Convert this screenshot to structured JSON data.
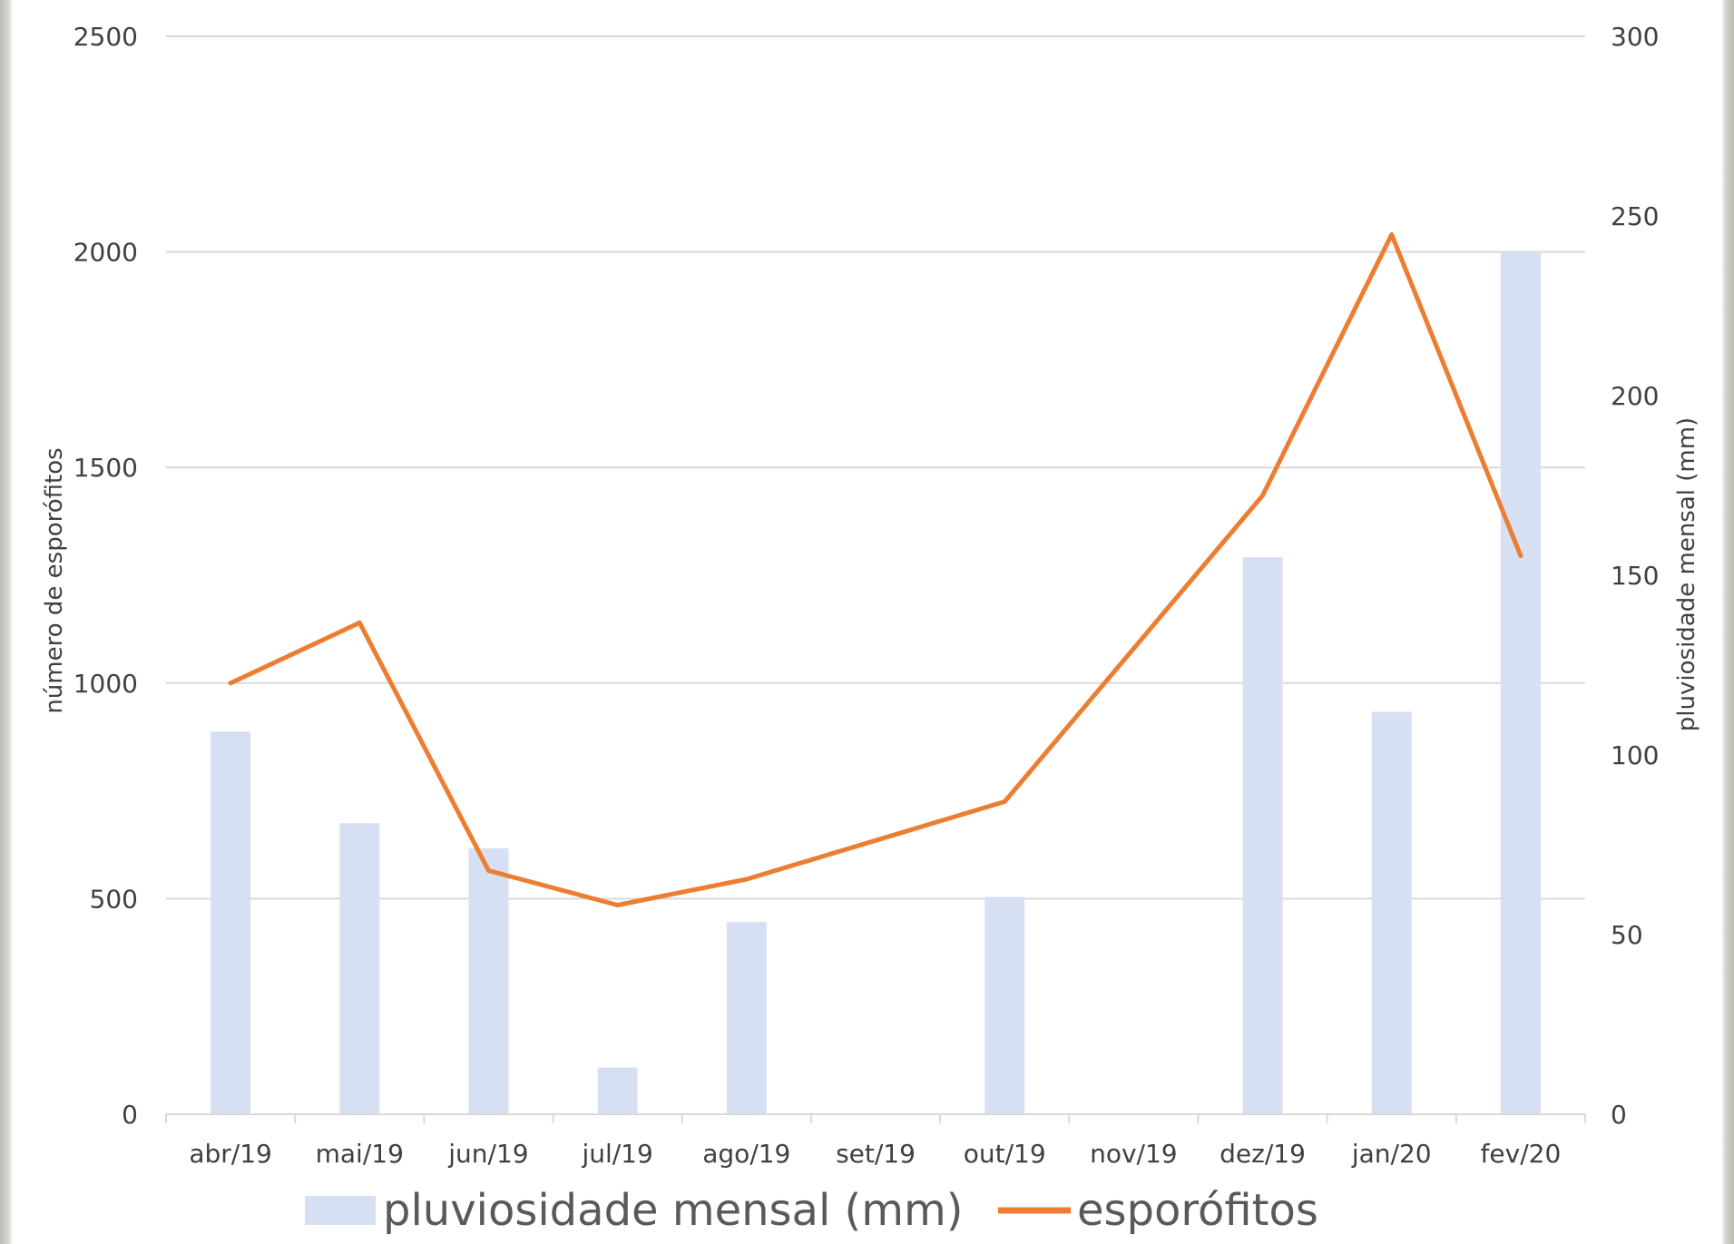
{
  "chart_data": {
    "type": "bar+line",
    "categories": [
      "abr/19",
      "mai/19",
      "jun/19",
      "jul/19",
      "ago/19",
      "set/19",
      "out/19",
      "nov/19",
      "dez/19",
      "jan/20",
      "fev/20"
    ],
    "series": [
      {
        "name": "pluviosidade mensal (mm)",
        "type": "bar",
        "axis": "right",
        "color": "#d6e0f2",
        "values": [
          106.5,
          81,
          74,
          13,
          53.5,
          0,
          60.5,
          0,
          155,
          112,
          240
        ]
      },
      {
        "name": "esporófitos",
        "type": "line",
        "axis": "left",
        "color": "#ed7d31",
        "values": [
          1000,
          1140,
          565,
          485,
          545,
          null,
          725,
          null,
          1435,
          2040,
          1295
        ]
      }
    ],
    "y_left": {
      "label": "número de esporófitos",
      "min": 0,
      "max": 2500,
      "ticks": [
        "0",
        "500",
        "1000",
        "1500",
        "2000",
        "2500"
      ]
    },
    "y_right": {
      "label": "pluviosidade mensal (mm)",
      "min": 0,
      "max": 300,
      "ticks": [
        "0",
        "50",
        "100",
        "150",
        "200",
        "250",
        "300"
      ]
    },
    "grid": true,
    "legend": {
      "placement": "bottom",
      "items": [
        "pluviosidade mensal (mm)",
        "esporófitos"
      ]
    }
  }
}
